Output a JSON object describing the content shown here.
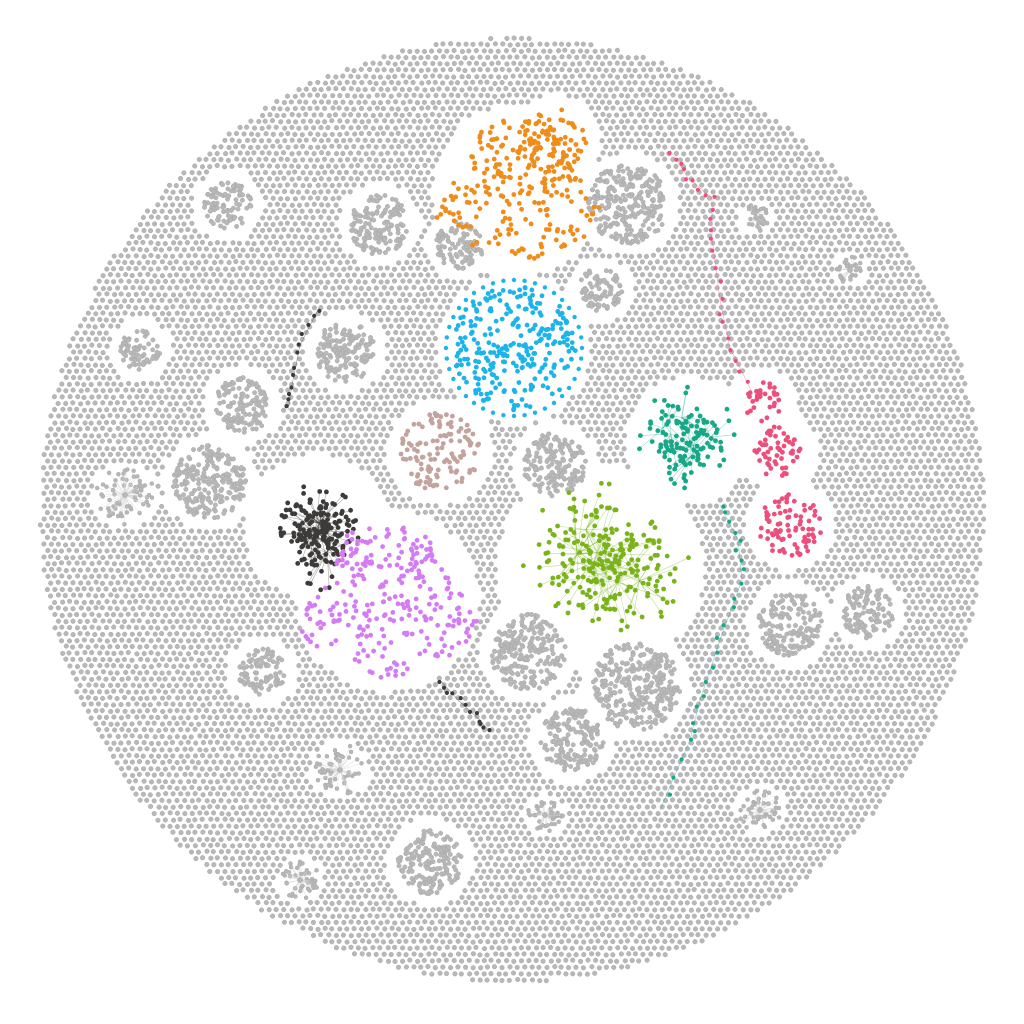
{
  "colors": {
    "background": "#ffffff",
    "node_default": "#b8b8b8",
    "node_default_stroke": "#a9a9a9",
    "edge_default": "#d6d6d6"
  },
  "communities": [
    {
      "id": "orange",
      "color": "#f08c1a"
    },
    {
      "id": "sky-blue",
      "color": "#1cb4ea"
    },
    {
      "id": "dusty-rose",
      "color": "#c2a39e"
    },
    {
      "id": "charcoal",
      "color": "#3d3b3a"
    },
    {
      "id": "violet",
      "color": "#d47cf4"
    },
    {
      "id": "lime",
      "color": "#7bb31a"
    },
    {
      "id": "teal",
      "color": "#16a887"
    },
    {
      "id": "crimson-pink",
      "color": "#ec4f7c"
    }
  ],
  "gray_subclusters": 24
}
